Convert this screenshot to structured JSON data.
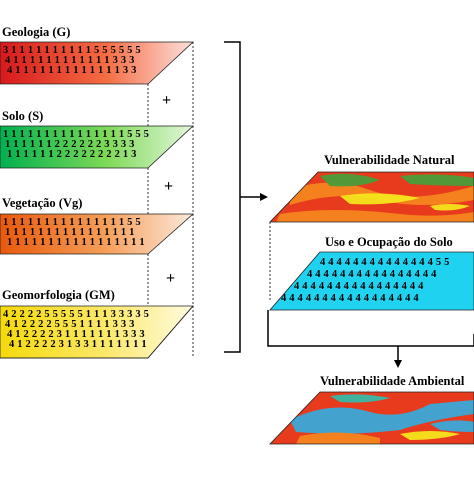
{
  "layers": [
    {
      "id": "geologia",
      "title": "Geologia (G)",
      "rows": [
        "3 1 1 1 1 1 1 1 1 1 1 5 5 5 5 5 5",
        "4 1 1 1 1 1 1 1 1 1 1 1 1 3 3 3",
        "4 1 1 1 1 1 1 1 1 1 1 1 1 1 3 3"
      ],
      "colors": {
        "left": "#d7191c",
        "mid": "#f46d43",
        "right": "#fde0dd"
      }
    },
    {
      "id": "solo",
      "title": "Solo (S)",
      "rows": [
        "1 1 1 1 1 1 1 1 1 1 1 1 1 1 1 5 5 5",
        "1 1 1 1 1 1 2 2 2 2 2 2 3 3 3 3",
        "1 1 1 1 1 1 2 2 2 2 2 2 2 2 1 3"
      ],
      "colors": {
        "left": "#00b050",
        "mid": "#7ed957",
        "right": "#e3f7dc"
      }
    },
    {
      "id": "vegetacao",
      "title": "Vegetação (Vg)",
      "rows": [
        "1 1 1 1 1 1 1 1 1 1 1 1 1 1 1 5 5",
        "1 1 1 1 1 1 1 1 1 1 1 1 1 1 1 1",
        "1 1 1 1 1 1 1 1 1 1 1 1 1 1 1 1 1"
      ],
      "colors": {
        "left": "#e8590c",
        "mid": "#f59f5a",
        "right": "#fce9dc"
      }
    },
    {
      "id": "geomorfologia",
      "title": "Geomorfologia (GM)",
      "rows": [
        "4 2 2 2 2 5 5 5 5 5 1 1 1 3 3 3 3 5",
        "4 1 2 2 2 2 5 5 5 1 1 1 1 3 3 3",
        "4 1 2 2 2 2 3 1 1 1 1 1 1 1 3 3 3",
        "4 1 2 2 2 2 3 1 3 3 1 1 1 1 1 1 1"
      ],
      "colors": {
        "left": "#f5d90a",
        "mid": "#fbe86b",
        "right": "#fffbe0"
      }
    }
  ],
  "operator": "+",
  "vulnerabilidade_natural": {
    "title": "Vulnerabilidade Natural"
  },
  "uso_ocupacao": {
    "title": "Uso e Ocupação do Solo",
    "rows": [
      "4 4 4 4 4 4 4 4 4 4 4 4 4 4 5 5",
      "4 4 4 4 4 4 4 4 4 4 4 4 4 4 4 4",
      "4 4 4 4 4 4 4 4 4 4 4 4 4 4 4 4",
      "4 4 4 4 4 4 4 4 4 4 4 4 4 4 4 4 4"
    ],
    "colors": {
      "fill": "#1fd3f0"
    }
  },
  "vulnerabilidade_ambiental": {
    "title": "Vulnerabilidade Ambiental"
  },
  "map_colors": {
    "red": "#e83a1c",
    "orange": "#f5841f",
    "yellow": "#f4e51c",
    "green": "#4a9c3a",
    "blue": "#3aa8d8",
    "teal": "#37b8a8"
  }
}
